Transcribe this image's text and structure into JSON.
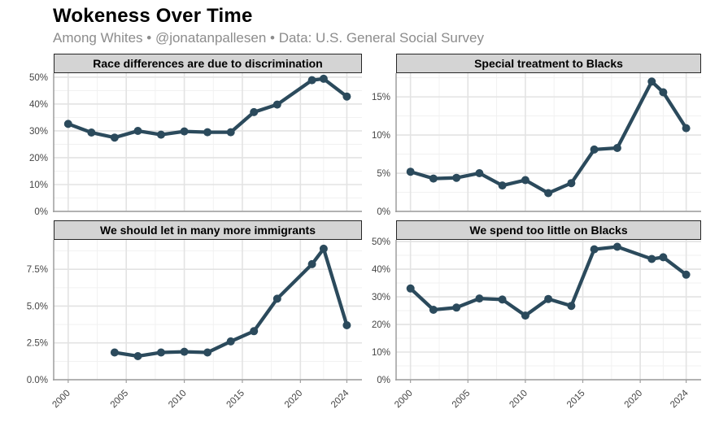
{
  "header": {
    "title": "Wokeness Over Time",
    "subtitle": "Among Whites • @jonatanpallesen • Data: U.S. General Social Survey"
  },
  "colors": {
    "background": "#ffffff",
    "title_text": "#000000",
    "subtitle_text": "#8c8c8c",
    "line": "#2b4a5c",
    "panel_header_bg": "#d4d4d4",
    "panel_header_border": "#262626",
    "grid_major": "#e3e3e3",
    "grid_minor": "#f1f1f1",
    "axis": "#9e9e9e",
    "tick_text": "#454545"
  },
  "chart_data": [
    {
      "type": "line",
      "title": "Race differences are due to discrimination",
      "x": [
        2000,
        2002,
        2004,
        2006,
        2008,
        2010,
        2012,
        2014,
        2016,
        2018,
        2021,
        2022,
        2024
      ],
      "values": [
        32.6,
        29.4,
        27.5,
        30.0,
        28.6,
        29.8,
        29.5,
        29.5,
        37.0,
        39.8,
        48.9,
        49.4,
        42.8
      ],
      "xlim": [
        1998.75,
        2025.3
      ],
      "ylim": [
        0,
        51.5
      ],
      "y_ticks": [
        {
          "v": 0,
          "label": "0%"
        },
        {
          "v": 10,
          "label": "10%"
        },
        {
          "v": 20,
          "label": "20%"
        },
        {
          "v": 30,
          "label": "30%"
        },
        {
          "v": 40,
          "label": "40%"
        },
        {
          "v": 50,
          "label": "50%"
        }
      ],
      "x_ticks": [
        {
          "v": 2000,
          "label": "2000"
        },
        {
          "v": 2005,
          "label": "2005"
        },
        {
          "v": 2010,
          "label": "2010"
        },
        {
          "v": 2015,
          "label": "2015"
        },
        {
          "v": 2020,
          "label": "2020"
        },
        {
          "v": 2024,
          "label": "2024"
        }
      ],
      "show_x_labels": false,
      "grid": true,
      "legend": "none"
    },
    {
      "type": "line",
      "title": "Special treatment to Blacks",
      "x": [
        2000,
        2002,
        2004,
        2006,
        2008,
        2010,
        2012,
        2014,
        2016,
        2018,
        2021,
        2022,
        2024
      ],
      "values": [
        5.2,
        4.3,
        4.4,
        5.0,
        3.4,
        4.1,
        2.4,
        3.7,
        8.1,
        8.3,
        17.0,
        15.6,
        10.9
      ],
      "xlim": [
        1998.75,
        2025.3
      ],
      "ylim": [
        0,
        18.1
      ],
      "y_ticks": [
        {
          "v": 0,
          "label": "0%"
        },
        {
          "v": 5,
          "label": "5%"
        },
        {
          "v": 10,
          "label": "10%"
        },
        {
          "v": 15,
          "label": "15%"
        }
      ],
      "x_ticks": [
        {
          "v": 2000,
          "label": "2000"
        },
        {
          "v": 2005,
          "label": "2005"
        },
        {
          "v": 2010,
          "label": "2010"
        },
        {
          "v": 2015,
          "label": "2015"
        },
        {
          "v": 2020,
          "label": "2020"
        },
        {
          "v": 2024,
          "label": "2024"
        }
      ],
      "show_x_labels": false,
      "grid": true,
      "legend": "none"
    },
    {
      "type": "line",
      "title": "We should let in many more immigrants",
      "x": [
        2004,
        2006,
        2008,
        2010,
        2012,
        2014,
        2016,
        2018,
        2021,
        2022,
        2024
      ],
      "values": [
        1.85,
        1.6,
        1.85,
        1.9,
        1.85,
        2.6,
        3.3,
        5.5,
        7.85,
        8.9,
        3.7
      ],
      "xlim": [
        1998.75,
        2025.3
      ],
      "ylim": [
        0,
        9.5
      ],
      "y_ticks": [
        {
          "v": 0,
          "label": "0.0%"
        },
        {
          "v": 2.5,
          "label": "2.5%"
        },
        {
          "v": 5,
          "label": "5.0%"
        },
        {
          "v": 7.5,
          "label": "7.5%"
        }
      ],
      "x_ticks": [
        {
          "v": 2000,
          "label": "2000"
        },
        {
          "v": 2005,
          "label": "2005"
        },
        {
          "v": 2010,
          "label": "2010"
        },
        {
          "v": 2015,
          "label": "2015"
        },
        {
          "v": 2020,
          "label": "2020"
        },
        {
          "v": 2024,
          "label": "2024"
        }
      ],
      "show_x_labels": true,
      "grid": true,
      "legend": "none"
    },
    {
      "type": "line",
      "title": "We spend too little on Blacks",
      "x": [
        2000,
        2002,
        2004,
        2006,
        2008,
        2010,
        2012,
        2014,
        2016,
        2018,
        2021,
        2022,
        2024
      ],
      "values": [
        33.0,
        25.3,
        26.1,
        29.4,
        29.0,
        23.2,
        29.2,
        26.7,
        47.2,
        48.1,
        43.7,
        44.3,
        38.0
      ],
      "xlim": [
        1998.75,
        2025.3
      ],
      "ylim": [
        0,
        50.6
      ],
      "y_ticks": [
        {
          "v": 0,
          "label": "0%"
        },
        {
          "v": 10,
          "label": "10%"
        },
        {
          "v": 20,
          "label": "20%"
        },
        {
          "v": 30,
          "label": "30%"
        },
        {
          "v": 40,
          "label": "40%"
        },
        {
          "v": 50,
          "label": "50%"
        }
      ],
      "x_ticks": [
        {
          "v": 2000,
          "label": "2000"
        },
        {
          "v": 2005,
          "label": "2005"
        },
        {
          "v": 2010,
          "label": "2010"
        },
        {
          "v": 2015,
          "label": "2015"
        },
        {
          "v": 2020,
          "label": "2020"
        },
        {
          "v": 2024,
          "label": "2024"
        }
      ],
      "show_x_labels": true,
      "grid": true,
      "legend": "none"
    }
  ]
}
